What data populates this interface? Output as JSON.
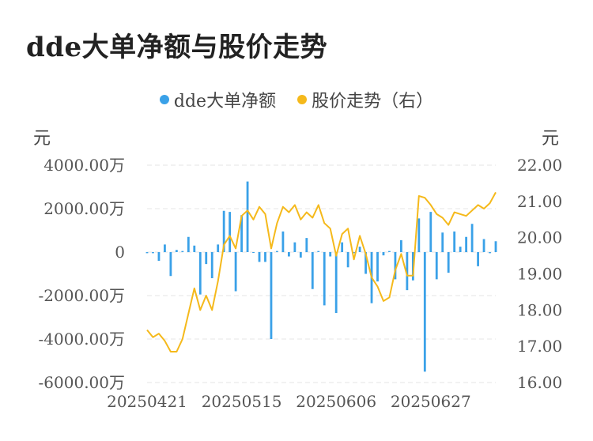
{
  "title": "dde大单净额与股价走势",
  "legend": [
    {
      "label": "dde大单净额",
      "color": "#3aa1e8"
    },
    {
      "label": "股价走势（右）",
      "color": "#f5b91b"
    }
  ],
  "units": {
    "left": "元",
    "right": "元"
  },
  "chart_data": {
    "type": "bar+line",
    "title": "dde大单净额与股价走势",
    "x_tick_labels": [
      "20250421",
      "20250515",
      "20250606",
      "20250627"
    ],
    "x_tick_index": [
      0,
      16,
      32,
      48
    ],
    "y_left": {
      "ticks": [
        -6000,
        -4000,
        -2000,
        0,
        2000,
        4000
      ],
      "tick_labels": [
        "-6000.00万",
        "-4000.00万",
        "-2000.00万",
        "0",
        "2000.00万",
        "4000.00万"
      ],
      "range": [
        -6000,
        4000
      ]
    },
    "y_right": {
      "ticks": [
        16,
        17,
        18,
        19,
        20,
        21,
        22
      ],
      "tick_labels": [
        "16.00",
        "17.00",
        "18.00",
        "19.00",
        "20.00",
        "21.00",
        "22.00"
      ],
      "range": [
        16,
        22
      ]
    },
    "grid": true,
    "series": [
      {
        "name": "dde大单净额",
        "type": "bar",
        "axis": "left",
        "color": "#3aa1e8",
        "values": [
          -50,
          -50,
          -400,
          350,
          -1100,
          100,
          50,
          700,
          300,
          -1950,
          -550,
          -1200,
          350,
          1900,
          1850,
          -1800,
          1700,
          3250,
          0,
          -450,
          -450,
          -4000,
          50,
          950,
          -200,
          450,
          -250,
          650,
          -1700,
          50,
          -2450,
          -200,
          -2800,
          450,
          -700,
          -50,
          250,
          -1000,
          -2350,
          -1350,
          -150,
          50,
          -1250,
          550,
          -1750,
          -1300,
          1550,
          -5500,
          1850,
          -1250,
          900,
          -950,
          950,
          250,
          700,
          1300,
          -650,
          600,
          -50,
          500
        ]
      },
      {
        "name": "股价走势（右）",
        "type": "line",
        "axis": "right",
        "color": "#f5b91b",
        "values": [
          17.45,
          17.25,
          17.35,
          17.15,
          16.85,
          16.85,
          17.2,
          17.9,
          18.6,
          18.0,
          18.4,
          18.0,
          18.8,
          19.8,
          20.05,
          19.7,
          20.6,
          20.75,
          20.5,
          20.85,
          20.65,
          19.7,
          20.4,
          20.85,
          20.7,
          20.9,
          20.5,
          20.7,
          20.55,
          20.9,
          20.4,
          20.25,
          19.5,
          20.1,
          20.25,
          19.4,
          20.05,
          19.55,
          18.9,
          18.65,
          18.25,
          18.35,
          19.1,
          19.55,
          18.95,
          18.95,
          21.15,
          21.1,
          20.9,
          20.65,
          20.55,
          20.35,
          20.7,
          20.65,
          20.6,
          20.75,
          20.9,
          20.8,
          20.95,
          21.25
        ]
      }
    ]
  }
}
